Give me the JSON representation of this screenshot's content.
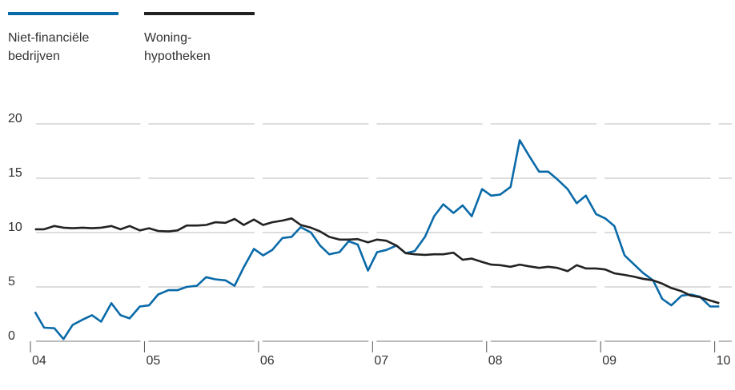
{
  "chart_data": {
    "type": "line",
    "x": [
      2004.04,
      2004.12,
      2004.21,
      2004.29,
      2004.37,
      2004.46,
      2004.54,
      2004.62,
      2004.71,
      2004.79,
      2004.87,
      2004.96,
      2005.04,
      2005.12,
      2005.21,
      2005.29,
      2005.37,
      2005.46,
      2005.54,
      2005.62,
      2005.71,
      2005.79,
      2005.87,
      2005.96,
      2006.04,
      2006.12,
      2006.21,
      2006.29,
      2006.37,
      2006.46,
      2006.54,
      2006.62,
      2006.71,
      2006.79,
      2006.87,
      2006.96,
      2007.04,
      2007.12,
      2007.21,
      2007.29,
      2007.37,
      2007.46,
      2007.54,
      2007.62,
      2007.71,
      2007.79,
      2007.87,
      2007.96,
      2008.04,
      2008.12,
      2008.21,
      2008.29,
      2008.37,
      2008.46,
      2008.54,
      2008.62,
      2008.71,
      2008.79,
      2008.87,
      2008.96,
      2009.04,
      2009.12,
      2009.21,
      2009.29,
      2009.37,
      2009.46,
      2009.54,
      2009.62,
      2009.71,
      2009.79,
      2009.87,
      2009.96,
      2010.04
    ],
    "series": [
      {
        "name": "Niet-financiële bedrijven",
        "color": "#0a6aa8",
        "values": [
          2.7,
          1.25,
          1.2,
          0.2,
          1.5,
          2.0,
          2.4,
          1.8,
          3.5,
          2.4,
          2.1,
          3.2,
          3.3,
          4.3,
          4.7,
          4.7,
          5.0,
          5.1,
          5.9,
          5.7,
          5.6,
          5.1,
          6.8,
          8.5,
          7.9,
          8.4,
          9.5,
          9.6,
          10.5,
          10.0,
          8.8,
          8.0,
          8.2,
          9.2,
          8.9,
          6.5,
          8.2,
          8.4,
          8.8,
          8.1,
          8.3,
          9.6,
          11.5,
          12.6,
          11.8,
          12.5,
          11.5,
          14.0,
          13.4,
          13.5,
          14.2,
          18.5,
          17.1,
          15.6,
          15.6,
          14.9,
          14.0,
          12.7,
          13.4,
          11.7,
          11.3,
          10.6,
          7.9,
          7.1,
          6.3,
          5.6,
          3.9,
          3.3,
          4.2,
          4.3,
          4.1,
          3.2,
          3.2
        ]
      },
      {
        "name": "Woning-hypotheken",
        "color": "#222222",
        "values": [
          10.3,
          10.3,
          10.6,
          10.45,
          10.4,
          10.45,
          10.4,
          10.45,
          10.6,
          10.3,
          10.6,
          10.2,
          10.4,
          10.15,
          10.1,
          10.2,
          10.65,
          10.65,
          10.7,
          10.95,
          10.9,
          11.25,
          10.7,
          11.2,
          10.7,
          10.95,
          11.1,
          11.3,
          10.7,
          10.45,
          10.1,
          9.6,
          9.35,
          9.35,
          9.4,
          9.1,
          9.35,
          9.25,
          8.8,
          8.1,
          8.0,
          7.95,
          8.0,
          8.0,
          8.15,
          7.5,
          7.6,
          7.3,
          7.05,
          7.0,
          6.85,
          7.05,
          6.9,
          6.75,
          6.85,
          6.75,
          6.45,
          7.0,
          6.7,
          6.7,
          6.6,
          6.25,
          6.1,
          5.95,
          5.75,
          5.6,
          5.3,
          4.9,
          4.6,
          4.2,
          4.05,
          3.75,
          3.5
        ]
      }
    ],
    "xlim": [
      2004,
      2010.15
    ],
    "xticks": [
      {
        "value": 2004,
        "label": "04"
      },
      {
        "value": 2005,
        "label": "05"
      },
      {
        "value": 2006,
        "label": "06"
      },
      {
        "value": 2007,
        "label": "07"
      },
      {
        "value": 2008,
        "label": "08"
      },
      {
        "value": 2009,
        "label": "09"
      },
      {
        "value": 2010,
        "label": "10"
      }
    ],
    "ylim": [
      0,
      20
    ],
    "yticks": [
      0,
      5,
      10,
      15,
      20
    ],
    "grid": true
  }
}
